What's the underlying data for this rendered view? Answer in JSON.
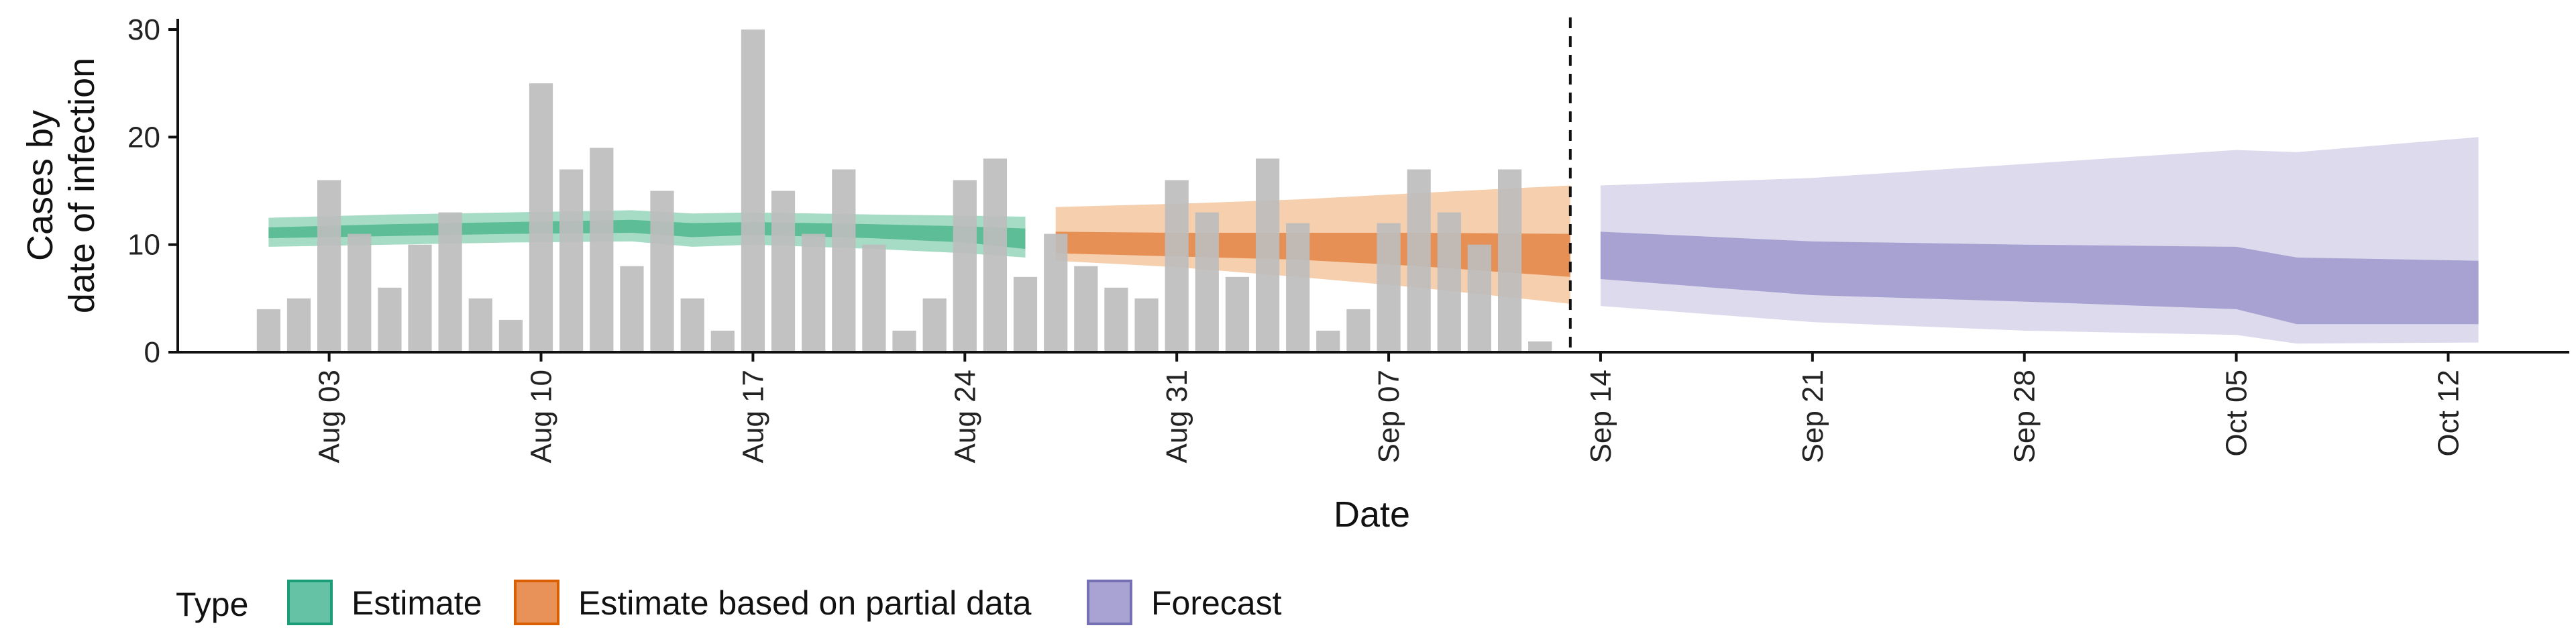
{
  "chart_data": {
    "type": "bar",
    "xlabel": "Date",
    "ylabel_lines": [
      "Cases by",
      "date of infection"
    ],
    "ylim": [
      0,
      31
    ],
    "xlim": [
      "2020-07-29",
      "2020-10-16"
    ],
    "y_ticks": [
      0,
      10,
      20,
      30
    ],
    "x_ticks": [
      {
        "date": "2020-08-03",
        "label": "Aug 03"
      },
      {
        "date": "2020-08-10",
        "label": "Aug 10"
      },
      {
        "date": "2020-08-17",
        "label": "Aug 17"
      },
      {
        "date": "2020-08-24",
        "label": "Aug 24"
      },
      {
        "date": "2020-08-31",
        "label": "Aug 31"
      },
      {
        "date": "2020-09-07",
        "label": "Sep 07"
      },
      {
        "date": "2020-09-14",
        "label": "Sep 14"
      },
      {
        "date": "2020-09-21",
        "label": "Sep 21"
      },
      {
        "date": "2020-09-28",
        "label": "Sep 28"
      },
      {
        "date": "2020-10-05",
        "label": "Oct 05"
      },
      {
        "date": "2020-10-12",
        "label": "Oct 12"
      }
    ],
    "grid": false,
    "legend_position": "bottom-left",
    "legend_title": "Type",
    "vline_date": "2020-09-13",
    "bars": {
      "color": "#bdbdbd",
      "start_date": "2020-08-01",
      "values": [
        4,
        5,
        16,
        11,
        6,
        10,
        13,
        5,
        3,
        25,
        17,
        19,
        8,
        15,
        5,
        2,
        30,
        15,
        11,
        17,
        10,
        2,
        5,
        16,
        18,
        7,
        11,
        8,
        6,
        5,
        16,
        13,
        7,
        18,
        12,
        2,
        4,
        12,
        17,
        13,
        10,
        17,
        1
      ]
    },
    "series": [
      {
        "name": "Estimate",
        "fill": "#66c2a5",
        "stroke": "#1b9e77",
        "outer_color": "#a6dbc6",
        "inner_color": "#5dbd97",
        "points": [
          {
            "date": "2020-08-01",
            "outer": [
              9.8,
              12.5
            ],
            "inner": [
              10.6,
              11.6
            ]
          },
          {
            "date": "2020-08-05",
            "outer": [
              10.0,
              12.8
            ],
            "inner": [
              10.8,
              11.9
            ]
          },
          {
            "date": "2020-08-09",
            "outer": [
              10.2,
              13.0
            ],
            "inner": [
              11.0,
              12.1
            ]
          },
          {
            "date": "2020-08-13",
            "outer": [
              10.3,
              13.2
            ],
            "inner": [
              11.1,
              12.3
            ]
          },
          {
            "date": "2020-08-15",
            "outer": [
              9.8,
              12.9
            ],
            "inner": [
              10.7,
              12.0
            ]
          },
          {
            "date": "2020-08-17",
            "outer": [
              10.0,
              13.0
            ],
            "inner": [
              10.9,
              12.1
            ]
          },
          {
            "date": "2020-08-21",
            "outer": [
              9.6,
              12.8
            ],
            "inner": [
              10.6,
              11.9
            ]
          },
          {
            "date": "2020-08-24",
            "outer": [
              9.2,
              12.7
            ],
            "inner": [
              10.2,
              11.7
            ]
          },
          {
            "date": "2020-08-26",
            "outer": [
              8.8,
              12.6
            ],
            "inner": [
              9.6,
              11.5
            ]
          }
        ]
      },
      {
        "name": "Estimate based on partial data",
        "fill": "#e8925a",
        "stroke": "#d95f02",
        "outer_color": "#f5cfae",
        "inner_color": "#e69055",
        "points": [
          {
            "date": "2020-08-27",
            "outer": [
              8.5,
              13.5
            ],
            "inner": [
              9.2,
              11.2
            ]
          },
          {
            "date": "2020-08-31",
            "outer": [
              7.9,
              13.8
            ],
            "inner": [
              8.9,
              11.1
            ]
          },
          {
            "date": "2020-09-04",
            "outer": [
              7.0,
              14.2
            ],
            "inner": [
              8.6,
              11.1
            ]
          },
          {
            "date": "2020-09-08",
            "outer": [
              6.0,
              14.8
            ],
            "inner": [
              8.0,
              11.1
            ]
          },
          {
            "date": "2020-09-13",
            "outer": [
              4.5,
              15.5
            ],
            "inner": [
              7.0,
              11.0
            ]
          }
        ]
      },
      {
        "name": "Forecast",
        "fill": "#a9a3d4",
        "stroke": "#7570b3",
        "outer_color": "#dcdaec",
        "inner_color": "#a7a2d2",
        "points": [
          {
            "date": "2020-09-14",
            "outer": [
              4.3,
              15.5
            ],
            "inner": [
              6.8,
              11.2
            ]
          },
          {
            "date": "2020-09-21",
            "outer": [
              2.8,
              16.2
            ],
            "inner": [
              5.3,
              10.3
            ]
          },
          {
            "date": "2020-09-28",
            "outer": [
              2.0,
              17.5
            ],
            "inner": [
              4.7,
              10.0
            ]
          },
          {
            "date": "2020-10-05",
            "outer": [
              1.6,
              18.8
            ],
            "inner": [
              4.0,
              9.8
            ]
          },
          {
            "date": "2020-10-07",
            "outer": [
              0.8,
              18.6
            ],
            "inner": [
              2.6,
              8.8
            ]
          },
          {
            "date": "2020-10-13",
            "outer": [
              0.9,
              20.0
            ],
            "inner": [
              2.6,
              8.5
            ]
          }
        ]
      }
    ]
  }
}
